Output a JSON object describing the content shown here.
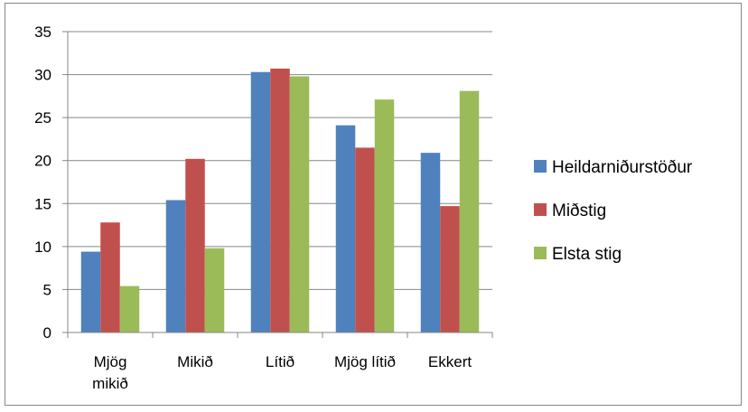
{
  "chart_data": {
    "type": "bar",
    "categories": [
      [
        "Mjög",
        "mikið"
      ],
      [
        "Mikið"
      ],
      [
        "Lítið"
      ],
      [
        "Mjög lítið"
      ],
      [
        "Ekkert"
      ]
    ],
    "series": [
      {
        "name": "Heildarniðurstöður",
        "color": "#4f81bd",
        "values": [
          9.4,
          15.4,
          30.3,
          24.1,
          20.9
        ]
      },
      {
        "name": "Miðstig",
        "color": "#c0504d",
        "values": [
          12.8,
          20.2,
          30.7,
          21.5,
          14.7
        ]
      },
      {
        "name": "Elsta stig",
        "color": "#9bbb59",
        "values": [
          5.4,
          9.8,
          29.8,
          27.1,
          28.1
        ]
      }
    ],
    "y_ticks": [
      "0",
      "5",
      "10",
      "15",
      "20",
      "25",
      "30",
      "35"
    ],
    "ylim": [
      0,
      35
    ],
    "grid": true,
    "legend_position": "right"
  }
}
